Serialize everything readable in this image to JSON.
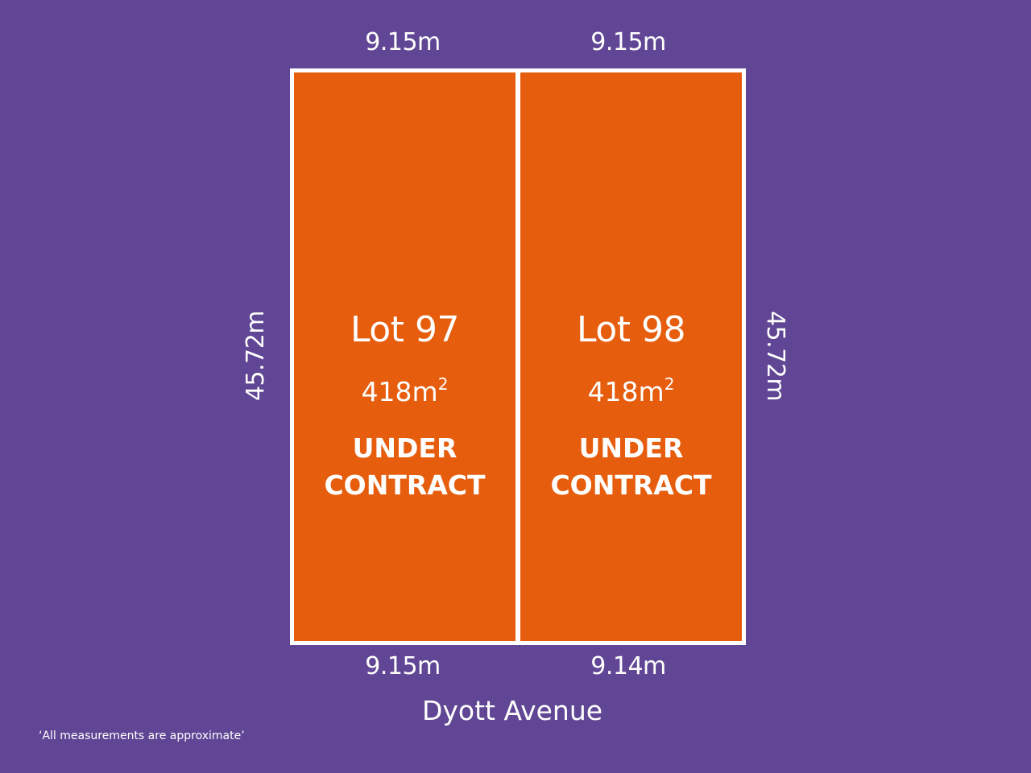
{
  "dimensions": {
    "top_left": "9.15m",
    "top_right": "9.15m",
    "bottom_left": "9.15m",
    "bottom_right": "9.14m",
    "left_side": "45.72m",
    "right_side": "45.72m"
  },
  "lots": [
    {
      "name": "Lot 97",
      "area_value": "418m",
      "area_superscript": "2",
      "status": "UNDER\nCONTRACT"
    },
    {
      "name": "Lot 98",
      "area_value": "418m",
      "area_superscript": "2",
      "status": "UNDER\nCONTRACT"
    }
  ],
  "street_name": "Dyott Avenue",
  "disclaimer": "‘All measurements are approximate’",
  "colors": {
    "background": "#604694",
    "lot_fill": "#e65d0d",
    "boundary": "#ffffff",
    "text": "#ffffff"
  }
}
